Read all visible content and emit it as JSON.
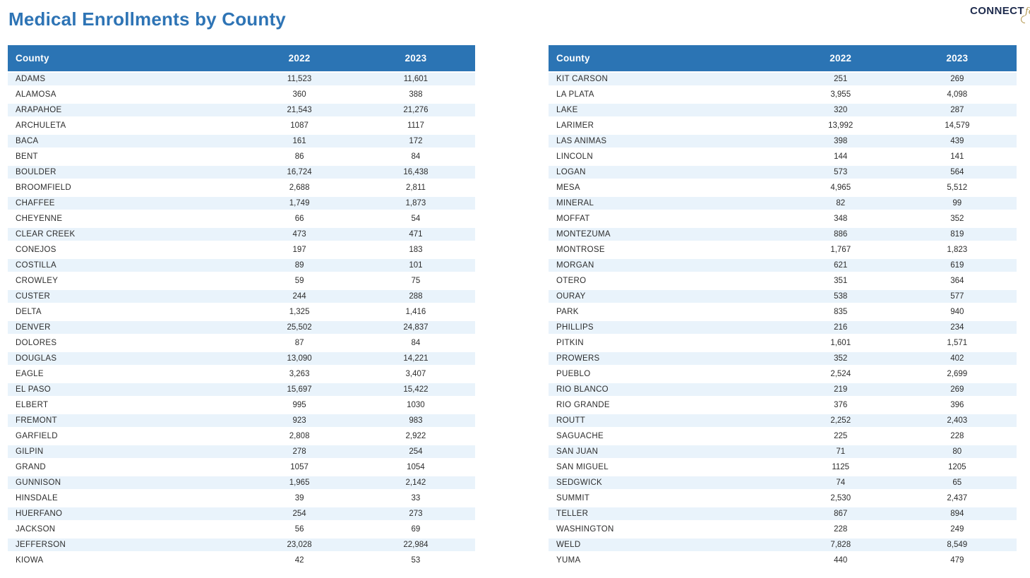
{
  "page_title": "Medical Enrollments by County",
  "logo": {
    "word": "CONNECT",
    "script_word": "for",
    "partial_letter": "H"
  },
  "table_headers": {
    "county": "County",
    "year_2022": "2022",
    "year_2023": "2023"
  },
  "colors": {
    "title_blue": "#2e74b5",
    "header_bar_blue": "#2b74b4",
    "row_stripe_blue": "#e9f3fb",
    "logo_navy": "#1e2b4d",
    "logo_gold": "#b3974f"
  },
  "tables": {
    "left": {
      "rows": [
        [
          "ADAMS",
          "11,523",
          "11,601"
        ],
        [
          "ALAMOSA",
          "360",
          "388"
        ],
        [
          "ARAPAHOE",
          "21,543",
          "21,276"
        ],
        [
          "ARCHULETA",
          "1087",
          "1117"
        ],
        [
          "BACA",
          "161",
          "172"
        ],
        [
          "BENT",
          "86",
          "84"
        ],
        [
          "BOULDER",
          "16,724",
          "16,438"
        ],
        [
          "BROOMFIELD",
          "2,688",
          "2,811"
        ],
        [
          "CHAFFEE",
          "1,749",
          "1,873"
        ],
        [
          "CHEYENNE",
          "66",
          "54"
        ],
        [
          "CLEAR CREEK",
          "473",
          "471"
        ],
        [
          "CONEJOS",
          "197",
          "183"
        ],
        [
          "COSTILLA",
          "89",
          "101"
        ],
        [
          "CROWLEY",
          "59",
          "75"
        ],
        [
          "CUSTER",
          "244",
          "288"
        ],
        [
          "DELTA",
          "1,325",
          "1,416"
        ],
        [
          "DENVER",
          "25,502",
          "24,837"
        ],
        [
          "DOLORES",
          "87",
          "84"
        ],
        [
          "DOUGLAS",
          "13,090",
          "14,221"
        ],
        [
          "EAGLE",
          "3,263",
          "3,407"
        ],
        [
          "EL PASO",
          "15,697",
          "15,422"
        ],
        [
          "ELBERT",
          "995",
          "1030"
        ],
        [
          "FREMONT",
          "923",
          "983"
        ],
        [
          "GARFIELD",
          "2,808",
          "2,922"
        ],
        [
          "GILPIN",
          "278",
          "254"
        ],
        [
          "GRAND",
          "1057",
          "1054"
        ],
        [
          "GUNNISON",
          "1,965",
          "2,142"
        ],
        [
          "HINSDALE",
          "39",
          "33"
        ],
        [
          "HUERFANO",
          "254",
          "273"
        ],
        [
          "JACKSON",
          "56",
          "69"
        ],
        [
          "JEFFERSON",
          "23,028",
          "22,984"
        ],
        [
          "KIOWA",
          "42",
          "53"
        ]
      ]
    },
    "right": {
      "rows": [
        [
          "KIT CARSON",
          "251",
          "269"
        ],
        [
          "LA PLATA",
          "3,955",
          "4,098"
        ],
        [
          "LAKE",
          "320",
          "287"
        ],
        [
          "LARIMER",
          "13,992",
          "14,579"
        ],
        [
          "LAS ANIMAS",
          "398",
          "439"
        ],
        [
          "LINCOLN",
          "144",
          "141"
        ],
        [
          "LOGAN",
          "573",
          "564"
        ],
        [
          "MESA",
          "4,965",
          "5,512"
        ],
        [
          "MINERAL",
          "82",
          "99"
        ],
        [
          "MOFFAT",
          "348",
          "352"
        ],
        [
          "MONTEZUMA",
          "886",
          "819"
        ],
        [
          "MONTROSE",
          "1,767",
          "1,823"
        ],
        [
          "MORGAN",
          "621",
          "619"
        ],
        [
          "OTERO",
          "351",
          "364"
        ],
        [
          "OURAY",
          "538",
          "577"
        ],
        [
          "PARK",
          "835",
          "940"
        ],
        [
          "PHILLIPS",
          "216",
          "234"
        ],
        [
          "PITKIN",
          "1,601",
          "1,571"
        ],
        [
          "PROWERS",
          "352",
          "402"
        ],
        [
          "PUEBLO",
          "2,524",
          "2,699"
        ],
        [
          "RIO BLANCO",
          "219",
          "269"
        ],
        [
          "RIO GRANDE",
          "376",
          "396"
        ],
        [
          "ROUTT",
          "2,252",
          "2,403"
        ],
        [
          "SAGUACHE",
          "225",
          "228"
        ],
        [
          "SAN JUAN",
          "71",
          "80"
        ],
        [
          "SAN MIGUEL",
          "1125",
          "1205"
        ],
        [
          "SEDGWICK",
          "74",
          "65"
        ],
        [
          "SUMMIT",
          "2,530",
          "2,437"
        ],
        [
          "TELLER",
          "867",
          "894"
        ],
        [
          "WASHINGTON",
          "228",
          "249"
        ],
        [
          "WELD",
          "7,828",
          "8,549"
        ],
        [
          "YUMA",
          "440",
          "479"
        ]
      ]
    }
  }
}
